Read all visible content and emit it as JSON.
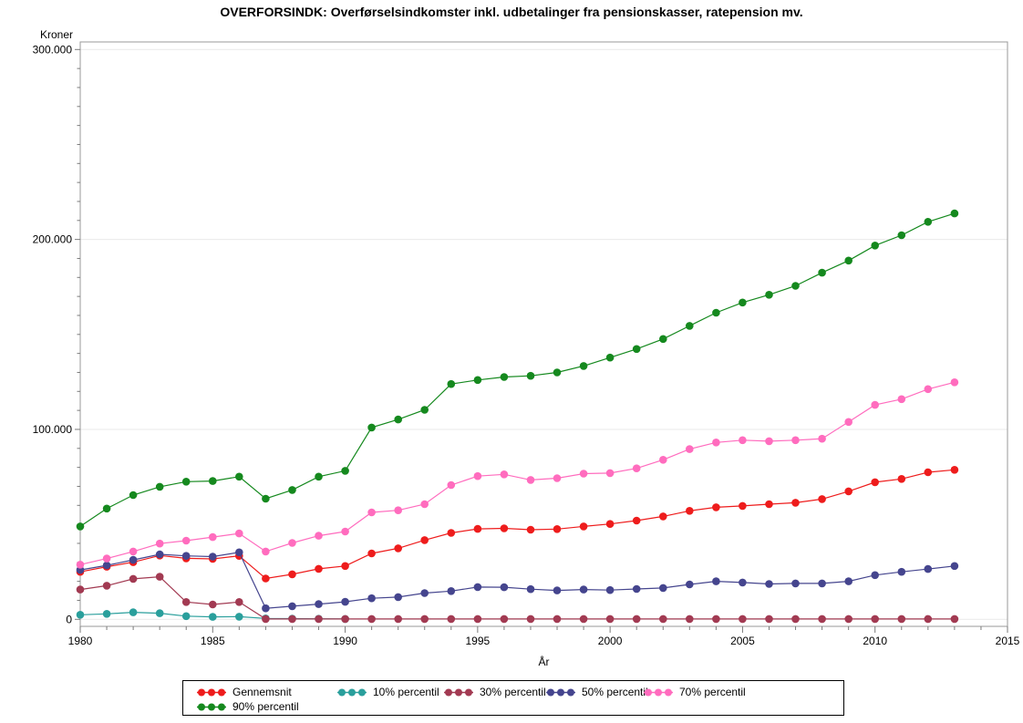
{
  "title": "OVERFORSINDK: Overførselsindkomster inkl. udbetalinger fra pensionskasser, ratepension mv.",
  "chart_data": {
    "type": "line",
    "title": "OVERFORSINDK: Overførselsindkomster inkl. udbetalinger fra pensionskasser, ratepension mv.",
    "xlabel": "År",
    "ylabel": "Kroner",
    "xlim": [
      1980,
      2015
    ],
    "ylim": [
      0,
      300000
    ],
    "grid": true,
    "legend_position": "bottom",
    "x_major_ticks": [
      1980,
      1985,
      1990,
      1995,
      2000,
      2005,
      2010,
      2015
    ],
    "x_tick_labels": [
      "1980",
      "1985",
      "1990",
      "1995",
      "2000",
      "2005",
      "2010",
      "2015"
    ],
    "y_major_ticks": [
      0,
      100000,
      200000,
      300000
    ],
    "y_tick_labels": [
      "0",
      "100.000",
      "200.000",
      "300.000"
    ],
    "y_minor_step": 10000,
    "y_major_step": 100000,
    "x": [
      1980,
      1981,
      1982,
      1983,
      1984,
      1985,
      1986,
      1987,
      1988,
      1989,
      1990,
      1991,
      1992,
      1993,
      1994,
      1995,
      1996,
      1997,
      1998,
      1999,
      2000,
      2001,
      2002,
      2003,
      2004,
      2005,
      2006,
      2007,
      2008,
      2009,
      2010,
      2011,
      2012,
      2013
    ],
    "series": [
      {
        "name": "Gennemsnit",
        "color": "#ee1c1c",
        "values": [
          25000,
          27700,
          30100,
          33600,
          32100,
          31800,
          33400,
          21500,
          23700,
          26600,
          28100,
          34700,
          37400,
          41700,
          45500,
          47600,
          47900,
          47200,
          47500,
          48900,
          50200,
          52000,
          54200,
          57100,
          59000,
          59700,
          60600,
          61400,
          63300,
          67400,
          72200,
          73900,
          77400,
          78700
        ]
      },
      {
        "name": "10% percentil",
        "color": "#2a9f9c",
        "values": [
          2400,
          2900,
          3700,
          3200,
          1700,
          1300,
          1400,
          500,
          400,
          300,
          200,
          null,
          null,
          null,
          null,
          null,
          null,
          null,
          null,
          null,
          null,
          null,
          null,
          null,
          null,
          null,
          null,
          null,
          null,
          null,
          null,
          null,
          null,
          null
        ]
      },
      {
        "name": "30% percentil",
        "color": "#a23a52",
        "values": [
          15700,
          17700,
          21300,
          22400,
          9100,
          7800,
          9100,
          200,
          200,
          200,
          200,
          200,
          200,
          200,
          200,
          200,
          200,
          200,
          200,
          200,
          200,
          200,
          200,
          200,
          200,
          200,
          200,
          200,
          200,
          200,
          200,
          200,
          200,
          200
        ]
      },
      {
        "name": "50% percentil",
        "color": "#45458e",
        "values": [
          26000,
          28400,
          31300,
          34200,
          33400,
          33000,
          35300,
          5800,
          6900,
          8000,
          9200,
          11100,
          11700,
          13800,
          14900,
          17000,
          16900,
          15900,
          15200,
          15700,
          15400,
          16000,
          16500,
          18400,
          20000,
          19400,
          18600,
          18900,
          18900,
          20000,
          23300,
          25000,
          26500,
          28100
        ]
      },
      {
        "name": "70% percentil",
        "color": "#ff6cbe",
        "values": [
          28800,
          32000,
          35700,
          39900,
          41400,
          43300,
          45200,
          35700,
          40200,
          44000,
          46200,
          56300,
          57400,
          60600,
          70700,
          75400,
          76300,
          73400,
          74300,
          76700,
          77000,
          79500,
          84000,
          89600,
          93100,
          94300,
          93800,
          94300,
          95100,
          103900,
          112900,
          115900,
          121200,
          124800
        ]
      },
      {
        "name": "90% percentil",
        "color": "#15891e",
        "values": [
          48900,
          58300,
          65400,
          69800,
          72500,
          72800,
          75100,
          63500,
          68100,
          75100,
          78200,
          101000,
          105200,
          110300,
          123900,
          126000,
          127600,
          128200,
          130000,
          133400,
          137800,
          142300,
          147600,
          154500,
          161400,
          166800,
          170900,
          175600,
          182500,
          188900,
          196800,
          202200,
          209300,
          213700
        ]
      }
    ]
  }
}
